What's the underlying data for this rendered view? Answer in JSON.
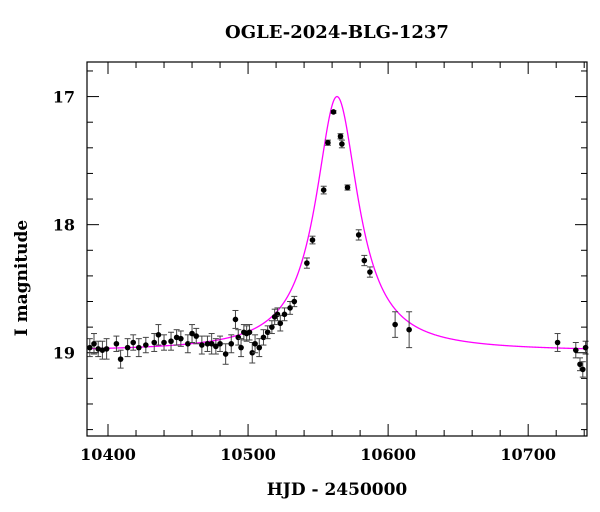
{
  "chart_data": {
    "type": "scatter",
    "title": "OGLE-2024-BLG-1237",
    "xlabel": "HJD - 2450000",
    "ylabel": "I magnitude",
    "xlim": [
      10385,
      10742
    ],
    "ylim": [
      19.65,
      16.73
    ],
    "y_inverted": true,
    "x_ticks": [
      10400,
      10500,
      10600,
      10700
    ],
    "y_ticks": [
      17,
      18,
      19
    ],
    "grid": false,
    "fit_color": "#ff00ff",
    "point_color": "#000000",
    "model": {
      "t0": 10563.5,
      "peak_mag": 17.0,
      "baseline_mag": 18.99,
      "width": 18.5
    },
    "series": [
      {
        "x": [
          10387,
          10390,
          10393,
          10396,
          10399,
          10406,
          10409,
          10414,
          10418,
          10422,
          10427,
          10433,
          10436,
          10440,
          10445,
          10449,
          10452,
          10457,
          10460,
          10463,
          10467,
          10471,
          10474,
          10477,
          10480,
          10484,
          10488,
          10491,
          10493,
          10495,
          10497,
          10499,
          10501,
          10503,
          10505,
          10508,
          10511,
          10514,
          10517,
          10519,
          10521,
          10523,
          10526,
          10530,
          10533,
          10542,
          10546,
          10554,
          10557,
          10561,
          10566,
          10567,
          10571,
          10579,
          10583,
          10587,
          10605,
          10615,
          10721,
          10734,
          10737,
          10739,
          10741
        ],
        "y": [
          18.96,
          18.93,
          18.97,
          18.98,
          18.97,
          18.93,
          19.05,
          18.96,
          18.92,
          18.96,
          18.94,
          18.92,
          18.86,
          18.92,
          18.91,
          18.88,
          18.89,
          18.93,
          18.85,
          18.87,
          18.94,
          18.93,
          18.93,
          18.95,
          18.93,
          19.01,
          18.93,
          18.74,
          18.88,
          18.96,
          18.84,
          18.85,
          18.84,
          19.0,
          18.93,
          18.96,
          18.88,
          18.84,
          18.8,
          18.72,
          18.7,
          18.77,
          18.7,
          18.65,
          18.6,
          18.3,
          18.12,
          17.73,
          17.36,
          17.12,
          17.31,
          17.37,
          17.71,
          18.08,
          18.28,
          18.37,
          18.78,
          18.82,
          18.92,
          18.98,
          19.09,
          19.13,
          18.96
        ],
        "err": [
          0.07,
          0.08,
          0.06,
          0.07,
          0.08,
          0.06,
          0.07,
          0.07,
          0.06,
          0.07,
          0.06,
          0.07,
          0.08,
          0.06,
          0.07,
          0.06,
          0.06,
          0.07,
          0.07,
          0.06,
          0.07,
          0.06,
          0.08,
          0.06,
          0.06,
          0.08,
          0.07,
          0.07,
          0.06,
          0.07,
          0.06,
          0.06,
          0.06,
          0.08,
          0.07,
          0.07,
          0.06,
          0.05,
          0.05,
          0.06,
          0.05,
          0.06,
          0.05,
          0.05,
          0.04,
          0.04,
          0.03,
          0.03,
          0.02,
          0.01,
          0.02,
          0.03,
          0.02,
          0.04,
          0.04,
          0.04,
          0.1,
          0.14,
          0.07,
          0.06,
          0.05,
          0.06,
          0.05
        ]
      }
    ]
  }
}
